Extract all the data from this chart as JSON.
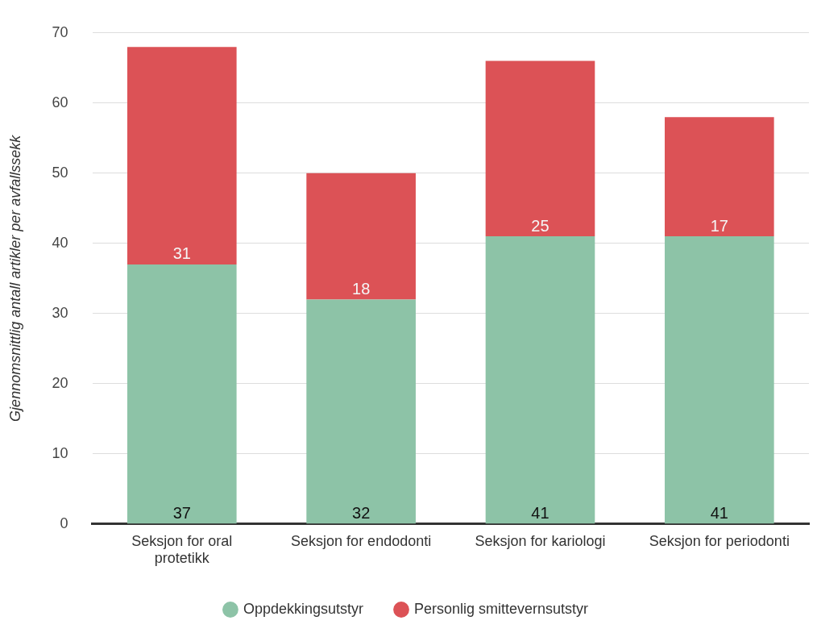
{
  "chart_data": {
    "type": "bar",
    "stacked": true,
    "ylabel": "Gjennomsnittlig antall artikler per avfallssekk",
    "categories": [
      "Seksjon for oral protetikk",
      "Seksjon for endodonti",
      "Seksjon for kariologi",
      "Seksjon for periodonti"
    ],
    "series": [
      {
        "name": "Oppdekkingsutstyr",
        "color": "#8dc3a7",
        "values": [
          37,
          32,
          41,
          41
        ]
      },
      {
        "name": "Personlig smittevernsutstyr",
        "color": "#dc5256",
        "values": [
          31,
          18,
          25,
          17
        ]
      }
    ],
    "ylim": [
      0,
      70
    ],
    "yticks": [
      0,
      10,
      20,
      30,
      40,
      50,
      60,
      70
    ],
    "grid": "y",
    "legend": "bottom",
    "data_labels": true
  }
}
